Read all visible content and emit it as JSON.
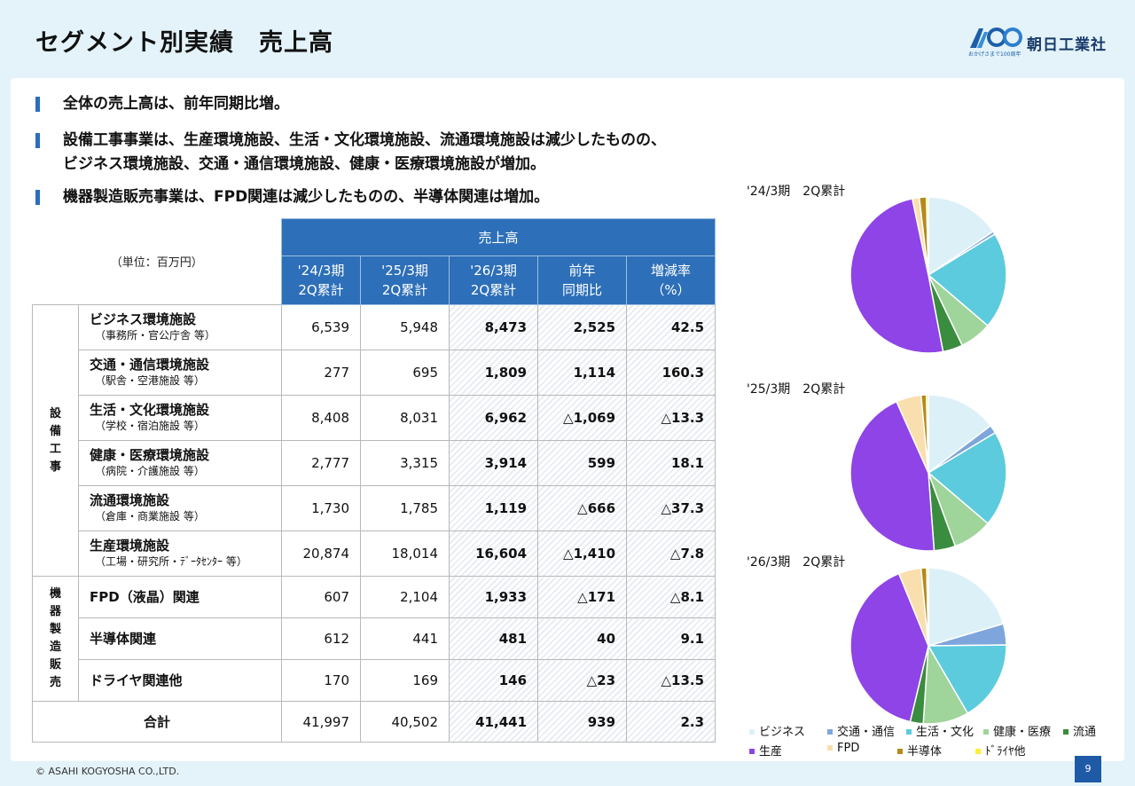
{
  "header": {
    "title": "セグメント別実績　売上高",
    "logo_sub": "おかげさまで100周年",
    "logo_name": "朝日工業社"
  },
  "bullets": [
    {
      "lines": [
        "全体の売上高は、前年同期比増。"
      ]
    },
    {
      "lines": [
        "設備工事事業は、生産環境施設、生活・文化環境施設、流通環境施設は減少したものの、",
        "ビジネス環境施設、交通・通信環境施設、健康・医療環境施設が増加。"
      ]
    },
    {
      "lines": [
        "機器製造販売事業は、FPD関連は減少したものの、半導体関連は増加。"
      ]
    }
  ],
  "table": {
    "unit": "（単位：百万円）",
    "group_header": "売上高",
    "columns": [
      [
        "'24/3期",
        "2Q累計"
      ],
      [
        "'25/3期",
        "2Q累計"
      ],
      [
        "'26/3期",
        "2Q累計"
      ],
      [
        "前年",
        "同期比"
      ],
      [
        "増減率",
        "（%）"
      ]
    ],
    "groups": [
      {
        "label": [
          "設",
          "備",
          "工",
          "事"
        ],
        "rows": [
          {
            "name": "ビジネス環境施設",
            "sub": "（事務所・官公庁舎 等）",
            "values": [
              "6,539",
              "5,948",
              "8,473",
              "2,525",
              "42.5"
            ]
          },
          {
            "name": "交通・通信環境施設",
            "sub": "（駅舎・空港施設 等）",
            "values": [
              "277",
              "695",
              "1,809",
              "1,114",
              "160.3"
            ]
          },
          {
            "name": "生活・文化環境施設",
            "sub": "（学校・宿泊施設 等）",
            "values": [
              "8,408",
              "8,031",
              "6,962",
              "△1,069",
              "△13.3"
            ]
          },
          {
            "name": "健康・医療環境施設",
            "sub": "（病院・介護施設 等）",
            "values": [
              "2,777",
              "3,315",
              "3,914",
              "599",
              "18.1"
            ]
          },
          {
            "name": "流通環境施設",
            "sub": "（倉庫・商業施設 等）",
            "values": [
              "1,730",
              "1,785",
              "1,119",
              "△666",
              "△37.3"
            ]
          },
          {
            "name": "生産環境施設",
            "sub": "（工場・研究所・ﾃﾞｰﾀｾﾝﾀｰ 等）",
            "values": [
              "20,874",
              "18,014",
              "16,604",
              "△1,410",
              "△7.8"
            ]
          }
        ]
      },
      {
        "label": [
          "機",
          "器",
          "製",
          "造",
          "販",
          "売"
        ],
        "rows": [
          {
            "name": "FPD（液晶）関連",
            "sub": "",
            "values": [
              "607",
              "2,104",
              "1,933",
              "△171",
              "△8.1"
            ]
          },
          {
            "name": "半導体関連",
            "sub": "",
            "values": [
              "612",
              "441",
              "481",
              "40",
              "9.1"
            ]
          },
          {
            "name": "ドライヤ関連他",
            "sub": "",
            "values": [
              "170",
              "169",
              "146",
              "△23",
              "△13.5"
            ]
          }
        ]
      }
    ],
    "total": {
      "label": "合計",
      "values": [
        "41,997",
        "40,502",
        "41,441",
        "939",
        "2.3"
      ]
    }
  },
  "chart_data": {
    "type": "pie",
    "categories": [
      "ビジネス",
      "交通・通信",
      "生活・文化",
      "健康・医療",
      "流通",
      "生産",
      "FPD",
      "半導体",
      "ﾄﾞﾗｲﾔ他"
    ],
    "colors": [
      "#dcf1f7",
      "#7ea6dc",
      "#5ccbdd",
      "#9fd49a",
      "#3a8c3e",
      "#8e44e6",
      "#f9dfae",
      "#b58a18",
      "#ffee33"
    ],
    "series": [
      {
        "name": "'24/3期　2Q累計",
        "values": [
          6539,
          277,
          8408,
          2777,
          1730,
          20874,
          607,
          612,
          170
        ]
      },
      {
        "name": "'25/3期　2Q累計",
        "values": [
          5948,
          695,
          8031,
          3315,
          1785,
          18014,
          2104,
          441,
          169
        ]
      },
      {
        "name": "'26/3期　2Q累計",
        "values": [
          8473,
          1809,
          6962,
          3914,
          1119,
          16604,
          1933,
          481,
          146
        ]
      }
    ],
    "legend": "bottom"
  },
  "footer": {
    "copyright": "© ASAHI KOGYOSHA CO.,LTD.",
    "page": "9"
  }
}
